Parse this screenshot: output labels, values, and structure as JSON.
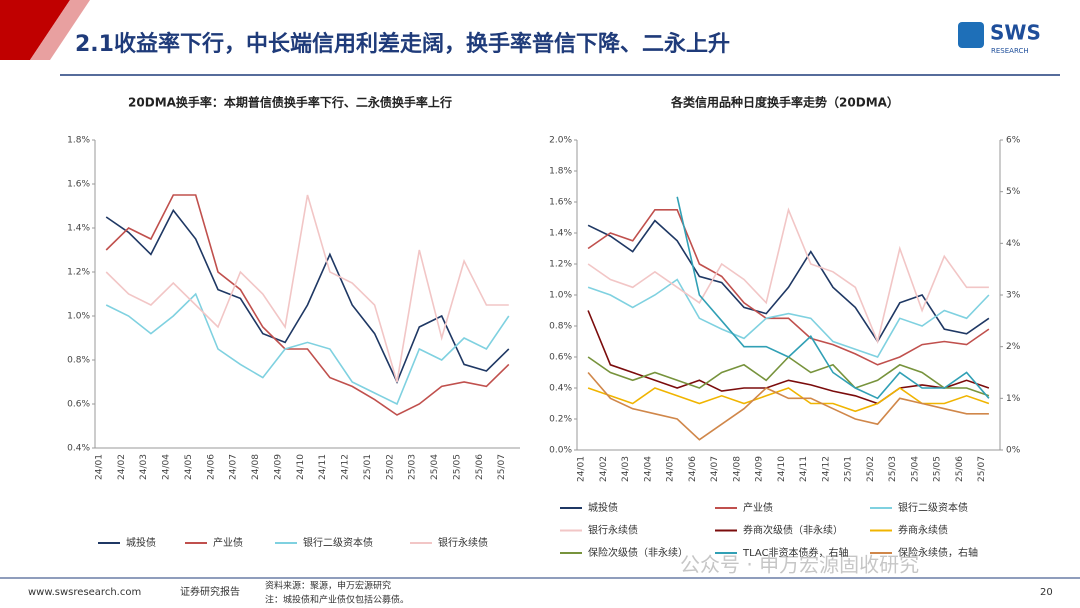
{
  "header": {
    "title": "2.1收益率下行，中长端信用利差走阔，换手率普信下降、二永上升",
    "logo": "SWS",
    "logo_sub": "RESEARCH"
  },
  "footer": {
    "site": "www.swsresearch.com",
    "report": "证券研究报告",
    "source": "资料来源：聚源，申万宏源研究",
    "note": "注：城投债和产业债仅包括公募债。",
    "page": "20",
    "watermark": "公众号 · 申万宏源固收研究"
  },
  "chart_data": [
    {
      "type": "line",
      "title": "20DMA换手率：本期普信债换手率下行、二永债换手率上行",
      "categories": [
        "24/01",
        "24/02",
        "24/03",
        "24/04",
        "24/05",
        "24/06",
        "24/07",
        "24/08",
        "24/09",
        "24/10",
        "24/11",
        "24/12",
        "25/01",
        "25/02",
        "25/03",
        "25/04",
        "25/05",
        "25/06",
        "25/07"
      ],
      "ylim": [
        0.4,
        1.8
      ],
      "yticks": [
        {
          "value": 0.4,
          "label": "0.4%"
        },
        {
          "value": 0.6,
          "label": "0.6%"
        },
        {
          "value": 0.8,
          "label": "0.8%"
        },
        {
          "value": 1.0,
          "label": "1.0%"
        },
        {
          "value": 1.2,
          "label": "1.2%"
        },
        {
          "value": 1.4,
          "label": "1.4%"
        },
        {
          "value": 1.6,
          "label": "1.6%"
        },
        {
          "value": 1.8,
          "label": "1.8%"
        }
      ],
      "series": [
        {
          "name": "城投债",
          "color": "#1f3864",
          "values": [
            1.45,
            1.38,
            1.28,
            1.48,
            1.35,
            1.12,
            1.08,
            0.92,
            0.88,
            1.05,
            1.28,
            1.05,
            0.92,
            0.7,
            0.95,
            1.0,
            0.78,
            0.75,
            0.85
          ]
        },
        {
          "name": "产业债",
          "color": "#c0504d",
          "values": [
            1.3,
            1.4,
            1.35,
            1.55,
            1.55,
            1.2,
            1.12,
            0.95,
            0.85,
            0.85,
            0.72,
            0.68,
            0.62,
            0.55,
            0.6,
            0.68,
            0.7,
            0.68,
            0.78
          ]
        },
        {
          "name": "银行二级资本债",
          "color": "#7fd1e0",
          "values": [
            1.05,
            1.0,
            0.92,
            1.0,
            1.1,
            0.85,
            0.78,
            0.72,
            0.85,
            0.88,
            0.85,
            0.7,
            0.65,
            0.6,
            0.85,
            0.8,
            0.9,
            0.85,
            1.0
          ]
        },
        {
          "name": "银行永续债",
          "color": "#f2c6c6",
          "values": [
            1.2,
            1.1,
            1.05,
            1.15,
            1.05,
            0.95,
            1.2,
            1.1,
            0.95,
            1.55,
            1.2,
            1.15,
            1.05,
            0.7,
            1.3,
            0.9,
            1.25,
            1.05,
            1.05
          ]
        }
      ]
    },
    {
      "type": "line",
      "title": "各类信用品种日度换手率走势（20DMA）",
      "categories": [
        "24/01",
        "24/02",
        "24/03",
        "24/04",
        "24/05",
        "24/06",
        "24/07",
        "24/08",
        "24/09",
        "24/10",
        "24/11",
        "24/12",
        "25/01",
        "25/02",
        "25/03",
        "25/04",
        "25/05",
        "25/06",
        "25/07"
      ],
      "ylim": [
        0,
        2.0
      ],
      "yticks": [
        {
          "value": 0,
          "label": "0.0%"
        },
        {
          "value": 0.2,
          "label": "0.2%"
        },
        {
          "value": 0.4,
          "label": "0.4%"
        },
        {
          "value": 0.6,
          "label": "0.6%"
        },
        {
          "value": 0.8,
          "label": "0.8%"
        },
        {
          "value": 1.0,
          "label": "1.0%"
        },
        {
          "value": 1.2,
          "label": "1.2%"
        },
        {
          "value": 1.4,
          "label": "1.4%"
        },
        {
          "value": 1.6,
          "label": "1.6%"
        },
        {
          "value": 1.8,
          "label": "1.8%"
        },
        {
          "value": 2.0,
          "label": "2.0%"
        }
      ],
      "y2lim": [
        0,
        6
      ],
      "y2ticks": [
        {
          "value": 0,
          "label": "0%"
        },
        {
          "value": 1,
          "label": "1%"
        },
        {
          "value": 2,
          "label": "2%"
        },
        {
          "value": 3,
          "label": "3%"
        },
        {
          "value": 4,
          "label": "4%"
        },
        {
          "value": 5,
          "label": "5%"
        },
        {
          "value": 6,
          "label": "6%"
        }
      ],
      "series": [
        {
          "name": "城投债",
          "color": "#1f3864",
          "values": [
            1.45,
            1.38,
            1.28,
            1.48,
            1.35,
            1.12,
            1.08,
            0.92,
            0.88,
            1.05,
            1.28,
            1.05,
            0.92,
            0.7,
            0.95,
            1.0,
            0.78,
            0.75,
            0.85
          ]
        },
        {
          "name": "产业债",
          "color": "#c0504d",
          "values": [
            1.3,
            1.4,
            1.35,
            1.55,
            1.55,
            1.2,
            1.12,
            0.95,
            0.85,
            0.85,
            0.72,
            0.68,
            0.62,
            0.55,
            0.6,
            0.68,
            0.7,
            0.68,
            0.78
          ]
        },
        {
          "name": "银行二级资本债",
          "color": "#7fd1e0",
          "values": [
            1.05,
            1.0,
            0.92,
            1.0,
            1.1,
            0.85,
            0.78,
            0.72,
            0.85,
            0.88,
            0.85,
            0.7,
            0.65,
            0.6,
            0.85,
            0.8,
            0.9,
            0.85,
            1.0
          ]
        },
        {
          "name": "银行永续债",
          "color": "#f2c6c6",
          "values": [
            1.2,
            1.1,
            1.05,
            1.15,
            1.05,
            0.95,
            1.2,
            1.1,
            0.95,
            1.55,
            1.2,
            1.15,
            1.05,
            0.7,
            1.3,
            0.9,
            1.25,
            1.05,
            1.05
          ]
        },
        {
          "name": "券商次级债（非永续）",
          "color": "#7b0c0c",
          "values": [
            0.9,
            0.55,
            0.5,
            0.45,
            0.4,
            0.45,
            0.38,
            0.4,
            0.4,
            0.45,
            0.42,
            0.38,
            0.35,
            0.3,
            0.4,
            0.42,
            0.4,
            0.45,
            0.4
          ]
        },
        {
          "name": "券商永续债",
          "color": "#f0b400",
          "values": [
            0.4,
            0.35,
            0.3,
            0.4,
            0.35,
            0.3,
            0.35,
            0.3,
            0.35,
            0.4,
            0.3,
            0.3,
            0.25,
            0.3,
            0.4,
            0.3,
            0.3,
            0.35,
            0.3
          ]
        },
        {
          "name": "保险次级债（非永续）",
          "color": "#77933c",
          "values": [
            0.6,
            0.5,
            0.45,
            0.5,
            0.45,
            0.4,
            0.5,
            0.55,
            0.45,
            0.6,
            0.5,
            0.55,
            0.4,
            0.45,
            0.55,
            0.5,
            0.4,
            0.4,
            0.35
          ]
        },
        {
          "name": "TLAC非资本债券，右轴",
          "color": "#31a0b5",
          "axis": "y2",
          "values": [
            null,
            null,
            null,
            null,
            4.9,
            3.0,
            2.5,
            2.0,
            2.0,
            1.8,
            2.2,
            1.5,
            1.2,
            1.0,
            1.5,
            1.2,
            1.2,
            1.5,
            1.0
          ]
        },
        {
          "name": "保险永续债，右轴",
          "color": "#d0874a",
          "axis": "y2",
          "values": [
            1.5,
            1.0,
            0.8,
            0.7,
            0.6,
            0.2,
            0.5,
            0.8,
            1.2,
            1.0,
            1.0,
            0.8,
            0.6,
            0.5,
            1.0,
            0.9,
            0.8,
            0.7,
            0.7
          ]
        }
      ]
    }
  ]
}
